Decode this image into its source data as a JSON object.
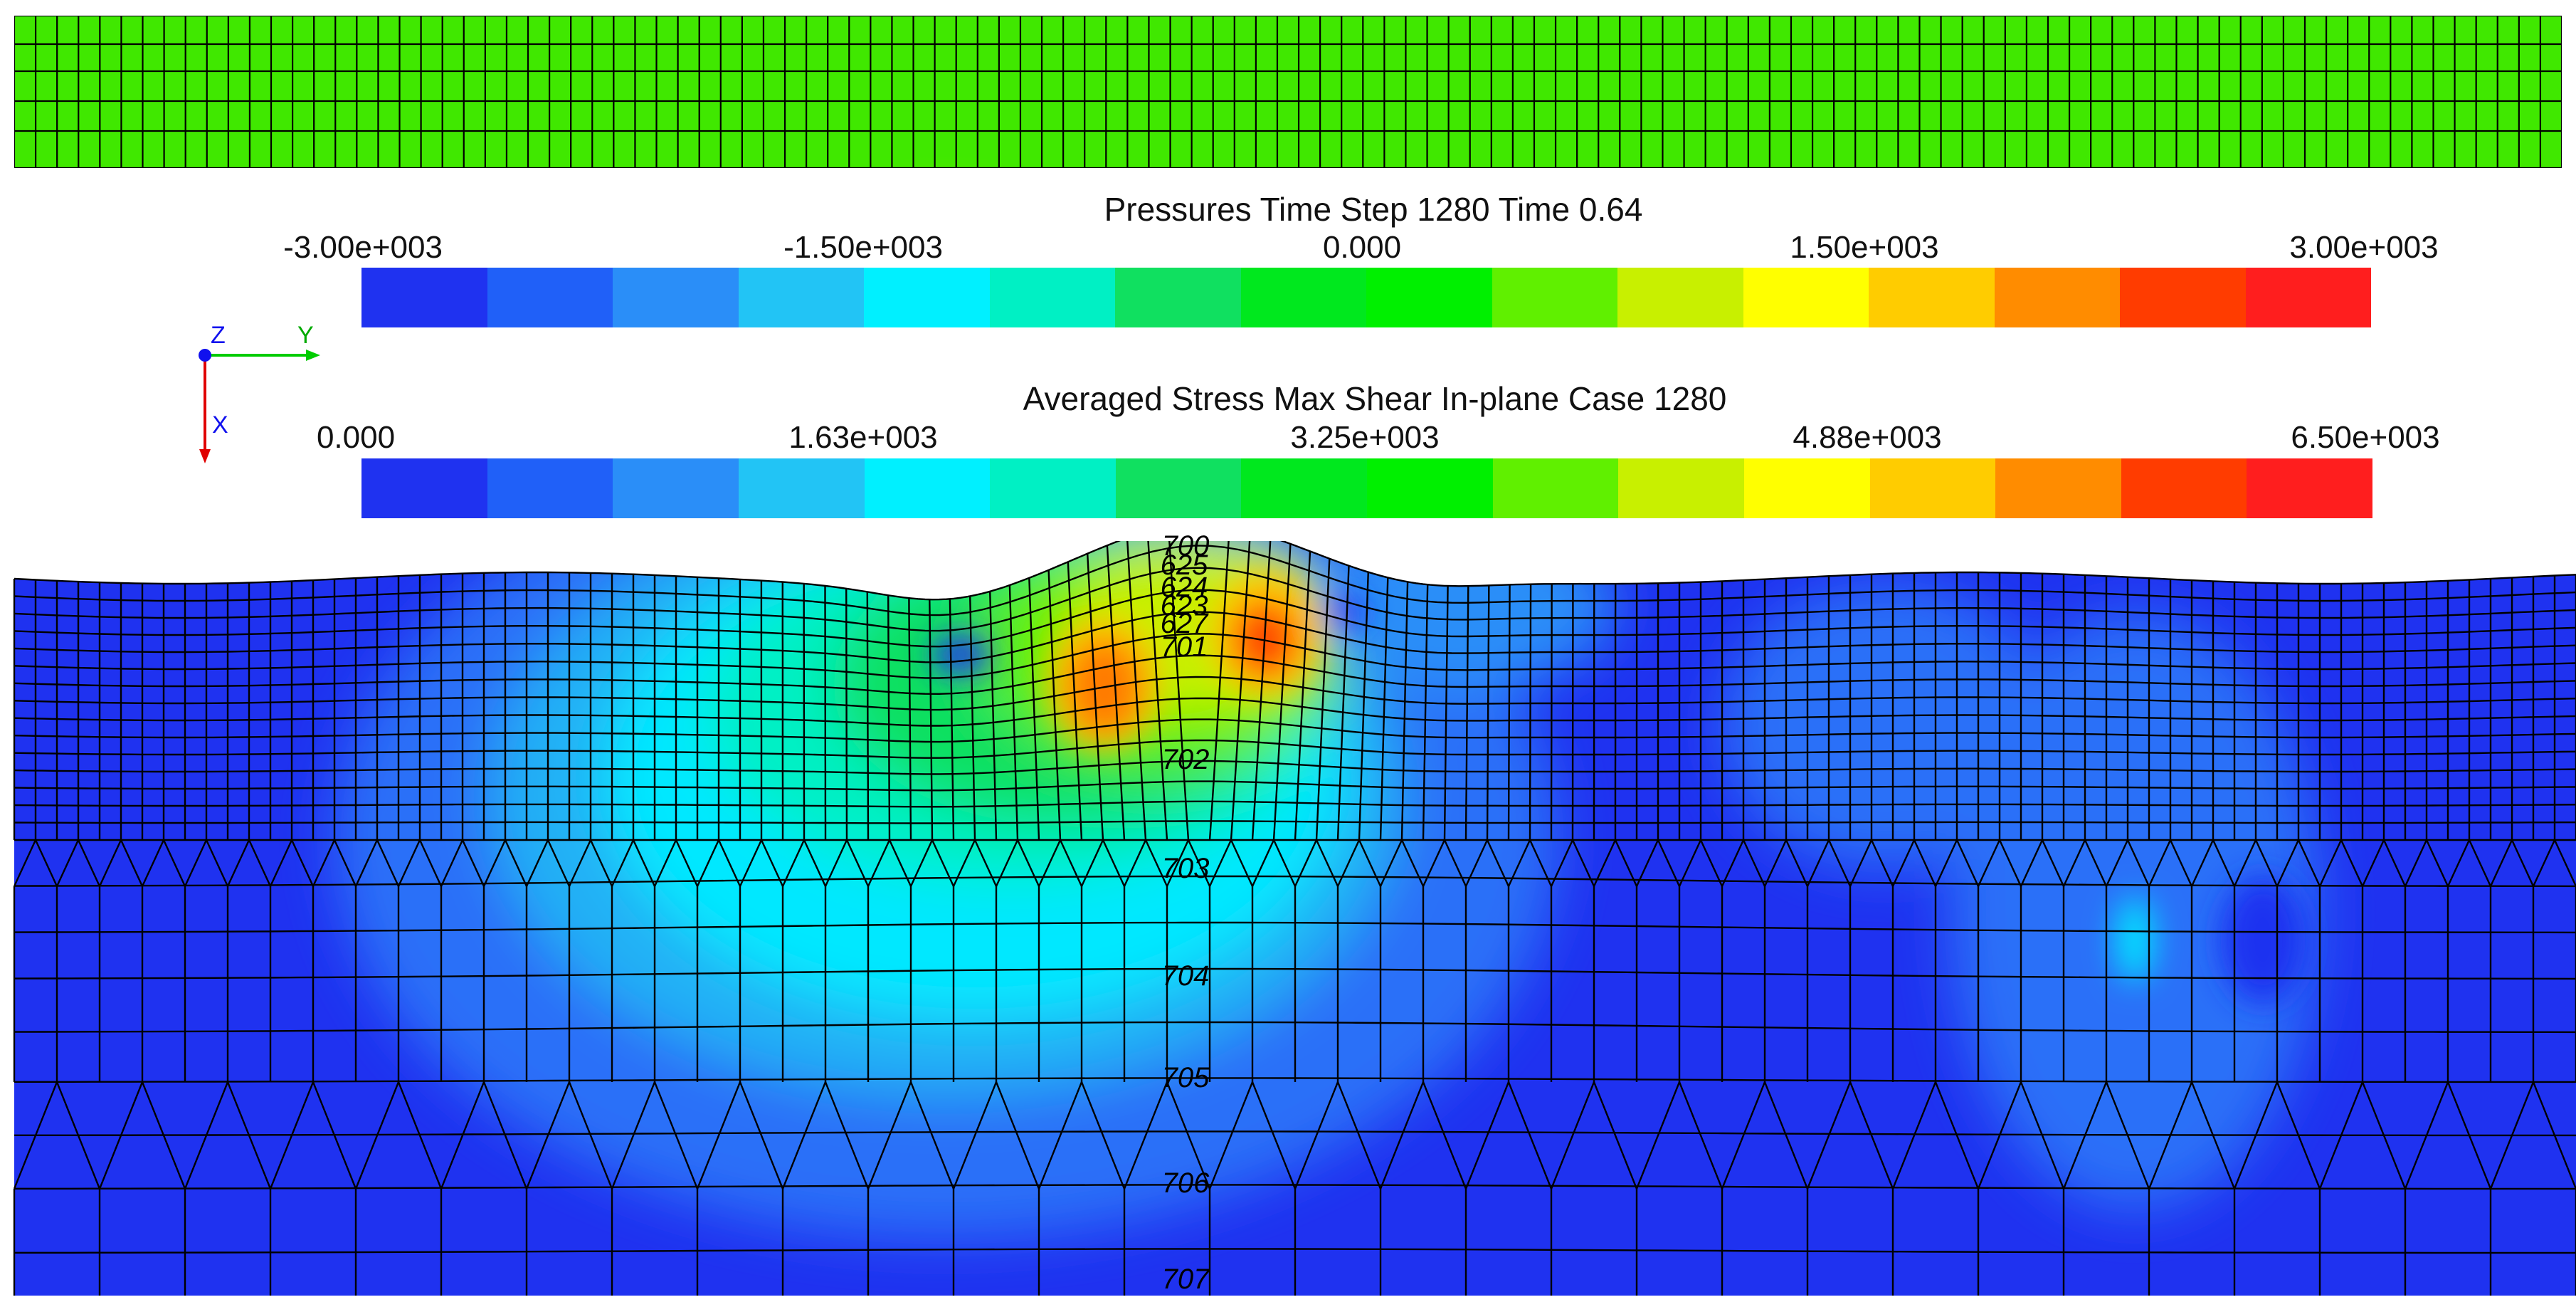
{
  "pressure_legend": {
    "title": "Pressures Time Step  1280 Time 0.64",
    "ticks": [
      "-3.00e+003",
      "-1.50e+003",
      "0.000",
      "1.50e+003",
      "3.00e+003"
    ],
    "colors": [
      "#1f32f0",
      "#2060f8",
      "#2a8ef8",
      "#22c4f5",
      "#00f0ff",
      "#00f0c4",
      "#10e060",
      "#00e81e",
      "#00f000",
      "#60f000",
      "#c8f000",
      "#ffff00",
      "#ffcc00",
      "#ff8c00",
      "#ff3c00",
      "#ff1e1e"
    ]
  },
  "shear_legend": {
    "title": "Averaged Stress Max Shear In-plane Case 1280",
    "ticks": [
      "0.000",
      "1.63e+003",
      "3.25e+003",
      "4.88e+003",
      "6.50e+003"
    ],
    "colors": [
      "#1f32f0",
      "#2060f8",
      "#2a8ef8",
      "#22c4f5",
      "#00f0ff",
      "#00f0c4",
      "#10e060",
      "#00e81e",
      "#00f000",
      "#60f000",
      "#c8f000",
      "#ffff00",
      "#ffcc00",
      "#ff8c00",
      "#ff3c00",
      "#ff1e1e"
    ]
  },
  "axis_triad": {
    "z_label": "Z",
    "y_label": "Y",
    "x_label": "X"
  },
  "node_labels": [
    "700",
    "625",
    "624",
    "623",
    "627",
    "701",
    "702",
    "703",
    "704",
    "705",
    "706",
    "707"
  ]
}
